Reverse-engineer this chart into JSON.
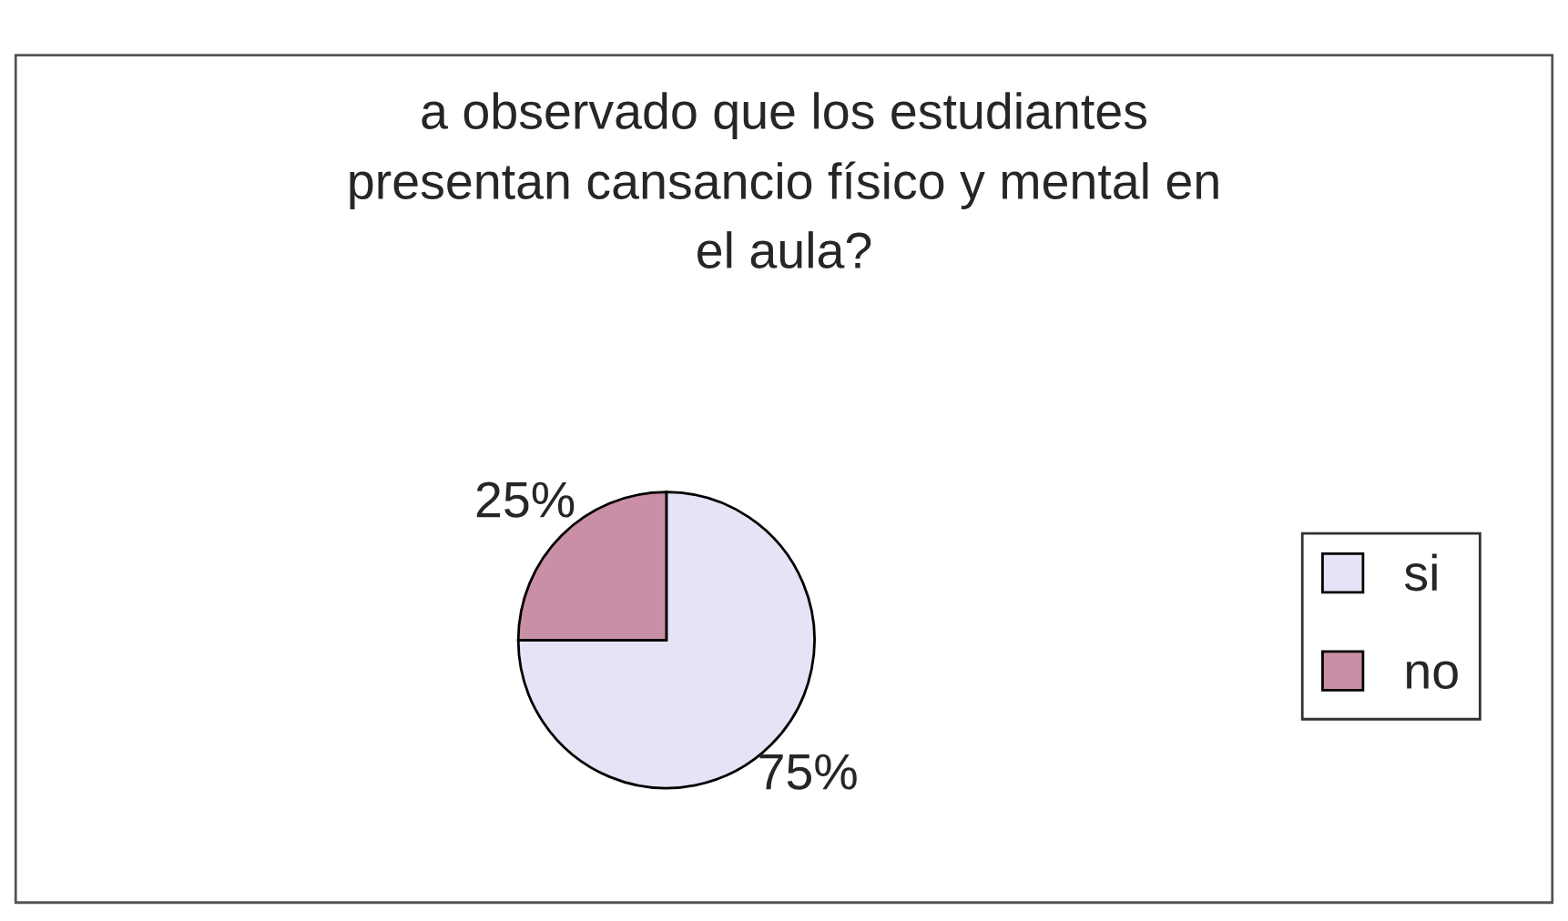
{
  "chart_data": {
    "type": "pie",
    "title": "a observado que los estudiantes\npresentan cansancio físico y mental en\nel aula?",
    "categories": [
      "si",
      "no"
    ],
    "values": [
      75,
      25
    ],
    "colors": [
      "#e4e4f6",
      "#c98fa6"
    ],
    "value_labels": [
      "75%",
      "25%"
    ],
    "legend": "right"
  }
}
